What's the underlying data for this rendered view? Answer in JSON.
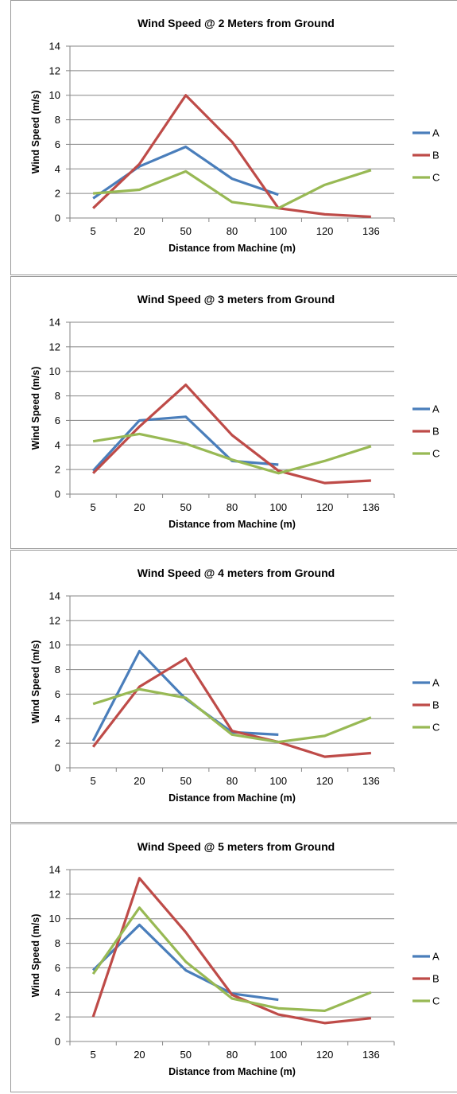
{
  "chart_data": [
    {
      "type": "line",
      "title": "Wind Speed @ 2 Meters from Ground",
      "xlabel": "Distance from Machine (m)",
      "ylabel": "Wind Speed (m/s)",
      "categories": [
        "5",
        "20",
        "50",
        "80",
        "100",
        "120",
        "136"
      ],
      "ylim": [
        0,
        14
      ],
      "yticks": [
        0,
        2,
        4,
        6,
        8,
        10,
        12,
        14
      ],
      "grid": true,
      "legend": "right",
      "series": [
        {
          "name": "A",
          "color": "#4A7EBB",
          "values": [
            1.6,
            4.2,
            5.8,
            3.2,
            1.9,
            null,
            null
          ]
        },
        {
          "name": "B",
          "color": "#BE4B48",
          "values": [
            0.8,
            4.4,
            10.0,
            6.2,
            0.8,
            0.3,
            0.1
          ]
        },
        {
          "name": "C",
          "color": "#98B954",
          "values": [
            2.0,
            2.3,
            3.8,
            1.3,
            0.8,
            2.7,
            3.9
          ]
        }
      ]
    },
    {
      "type": "line",
      "title": "Wind Speed @ 3 meters from Ground",
      "xlabel": "Distance from Machine (m)",
      "ylabel": "Wind Speed (m/s)",
      "categories": [
        "5",
        "20",
        "50",
        "80",
        "100",
        "120",
        "136"
      ],
      "ylim": [
        0,
        14
      ],
      "yticks": [
        0,
        2,
        4,
        6,
        8,
        10,
        12,
        14
      ],
      "grid": true,
      "legend": "right",
      "series": [
        {
          "name": "A",
          "color": "#4A7EBB",
          "values": [
            1.9,
            6.0,
            6.3,
            2.7,
            2.4,
            null,
            null
          ]
        },
        {
          "name": "B",
          "color": "#BE4B48",
          "values": [
            1.7,
            5.5,
            8.9,
            4.8,
            1.9,
            0.9,
            1.1
          ]
        },
        {
          "name": "C",
          "color": "#98B954",
          "values": [
            4.3,
            4.9,
            4.1,
            2.8,
            1.7,
            2.7,
            3.9
          ]
        }
      ]
    },
    {
      "type": "line",
      "title": "Wind Speed @ 4 meters from Ground",
      "xlabel": "Distance from Machine (m)",
      "ylabel": "Wind Speed (m/s)",
      "categories": [
        "5",
        "20",
        "50",
        "80",
        "100",
        "120",
        "136"
      ],
      "ylim": [
        0,
        14
      ],
      "yticks": [
        0,
        2,
        4,
        6,
        8,
        10,
        12,
        14
      ],
      "grid": true,
      "legend": "right",
      "series": [
        {
          "name": "A",
          "color": "#4A7EBB",
          "values": [
            2.2,
            9.5,
            5.6,
            2.9,
            2.7,
            null,
            null
          ]
        },
        {
          "name": "B",
          "color": "#BE4B48",
          "values": [
            1.7,
            6.6,
            8.9,
            3.0,
            2.1,
            0.9,
            1.2
          ]
        },
        {
          "name": "C",
          "color": "#98B954",
          "values": [
            5.2,
            6.4,
            5.7,
            2.7,
            2.1,
            2.6,
            4.1
          ]
        }
      ]
    },
    {
      "type": "line",
      "title": "Wind Speed @ 5 meters from Ground",
      "xlabel": "Distance from Machine (m)",
      "ylabel": "Wind Speed (m/s)",
      "categories": [
        "5",
        "20",
        "50",
        "80",
        "100",
        "120",
        "136"
      ],
      "ylim": [
        0,
        14
      ],
      "yticks": [
        0,
        2,
        4,
        6,
        8,
        10,
        12,
        14
      ],
      "grid": true,
      "legend": "right",
      "series": [
        {
          "name": "A",
          "color": "#4A7EBB",
          "values": [
            5.8,
            9.5,
            5.8,
            3.9,
            3.4,
            null,
            null
          ]
        },
        {
          "name": "B",
          "color": "#BE4B48",
          "values": [
            2.0,
            13.3,
            8.9,
            3.8,
            2.2,
            1.5,
            1.9
          ]
        },
        {
          "name": "C",
          "color": "#98B954",
          "values": [
            5.5,
            10.9,
            6.5,
            3.5,
            2.7,
            2.5,
            4.0
          ]
        }
      ]
    }
  ]
}
